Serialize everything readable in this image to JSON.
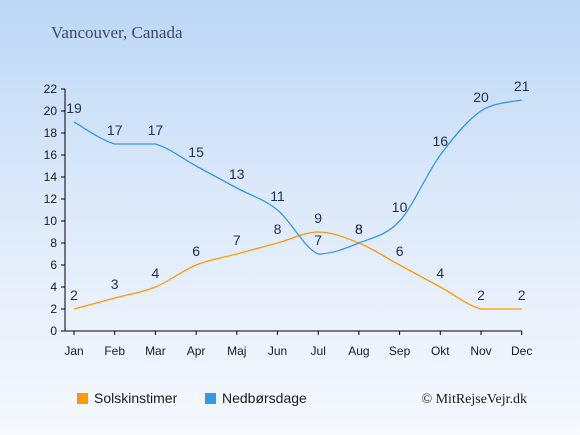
{
  "chart_data": {
    "type": "line",
    "title": "Vancouver, Canada",
    "categories": [
      "Jan",
      "Feb",
      "Mar",
      "Apr",
      "Maj",
      "Jun",
      "Jul",
      "Aug",
      "Sep",
      "Okt",
      "Nov",
      "Dec"
    ],
    "series": [
      {
        "name": "Solskinstimer",
        "values": [
          2,
          3,
          4,
          6,
          7,
          8,
          9,
          8,
          6,
          4,
          2,
          2
        ],
        "color": "#ff9900"
      },
      {
        "name": "Nedbørsdage",
        "values": [
          19,
          17,
          17,
          15,
          13,
          11,
          7,
          8,
          10,
          16,
          20,
          21
        ],
        "color": "#3399e6"
      }
    ],
    "yticks": [
      0,
      2,
      4,
      6,
      8,
      10,
      12,
      14,
      16,
      18,
      20,
      22
    ],
    "ylim": [
      0,
      22
    ],
    "grid": false,
    "legend": "bottom-left"
  },
  "credit": "© MitRejseVejr.dk"
}
